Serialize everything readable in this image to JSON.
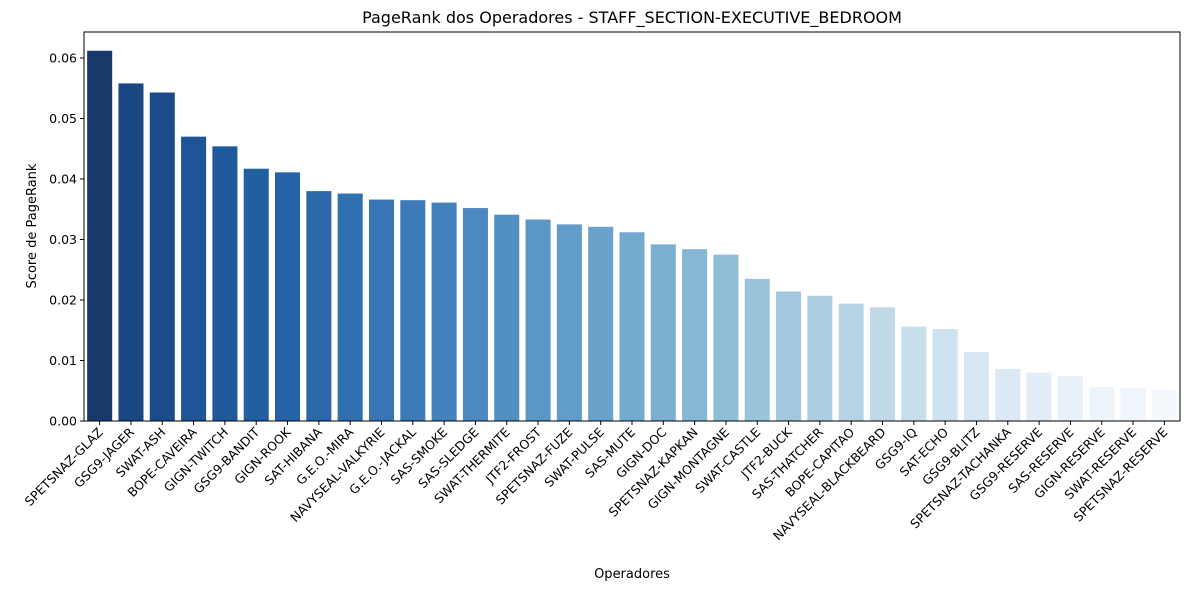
{
  "chart_data": {
    "type": "bar",
    "title": "PageRank dos Operadores - STAFF_SECTION-EXECUTIVE_BEDROOM",
    "xlabel": "Operadores",
    "ylabel": "Score de PageRank",
    "ylim": [
      0,
      0.0643
    ],
    "yticks": [
      "0.00",
      "0.01",
      "0.02",
      "0.03",
      "0.04",
      "0.05",
      "0.06"
    ],
    "grid": false,
    "legend": "none",
    "palette": "Blues (reversed): dark blue to pale blue",
    "categories": [
      "SPETSNAZ-GLAZ",
      "GSG9-JAGER",
      "SWAT-ASH",
      "BOPE-CAVEIRA",
      "GIGN-TWITCH",
      "GSG9-BANDIT",
      "GIGN-ROOK",
      "SAT-HIBANA",
      "G.E.O.-MIRA",
      "NAVYSEAL-VALKYRIE",
      "G.E.O.-JACKAL",
      "SAS-SMOKE",
      "SAS-SLEDGE",
      "SWAT-THERMITE",
      "JTF2-FROST",
      "SPETSNAZ-FUZE",
      "SWAT-PULSE",
      "SAS-MUTE",
      "GIGN-DOC",
      "SPETSNAZ-KAPKAN",
      "GIGN-MONTAGNE",
      "SWAT-CASTLE",
      "JTF2-BUCK",
      "SAS-THATCHER",
      "BOPE-CAPITAO",
      "NAVYSEAL-BLACKBEARD",
      "GSG9-IQ",
      "SAT-ECHO",
      "GSG9-BLITZ",
      "SPETSNAZ-TACHANKA",
      "GSG9-RESERVE",
      "SAS-RESERVE",
      "GIGN-RESERVE",
      "SWAT-RESERVE",
      "SPETSNAZ-RESERVE"
    ],
    "values": [
      0.0612,
      0.0558,
      0.0543,
      0.047,
      0.0454,
      0.0417,
      0.0411,
      0.038,
      0.0376,
      0.0366,
      0.0365,
      0.0361,
      0.0352,
      0.0341,
      0.0333,
      0.0325,
      0.0321,
      0.0312,
      0.0292,
      0.0284,
      0.0275,
      0.0235,
      0.0214,
      0.0207,
      0.0194,
      0.0188,
      0.0156,
      0.0152,
      0.0114,
      0.0086,
      0.008,
      0.0074,
      0.0056,
      0.0055,
      0.0053
    ],
    "colors": [
      "#173a6b",
      "#1a4784",
      "#1b4b88",
      "#1e5596",
      "#1f5a9b",
      "#225fa1",
      "#2563a6",
      "#2a68aa",
      "#306fb0",
      "#3775b4",
      "#3d7bb8",
      "#4482bd",
      "#4c89c0",
      "#5390c2",
      "#5a97c5",
      "#619dc8",
      "#69a3cb",
      "#72aace",
      "#7cb0d1",
      "#86b7d5",
      "#90bdd8",
      "#9ac3dc",
      "#a4c9df",
      "#aecfe3",
      "#b7d4e6",
      "#bfd9e9",
      "#c7deec",
      "#cfe2ef",
      "#d6e6f2",
      "#dce9f4",
      "#e2edf7",
      "#e8f1f9",
      "#edf4fa",
      "#f1f6fc",
      "#f5f9fe"
    ]
  }
}
